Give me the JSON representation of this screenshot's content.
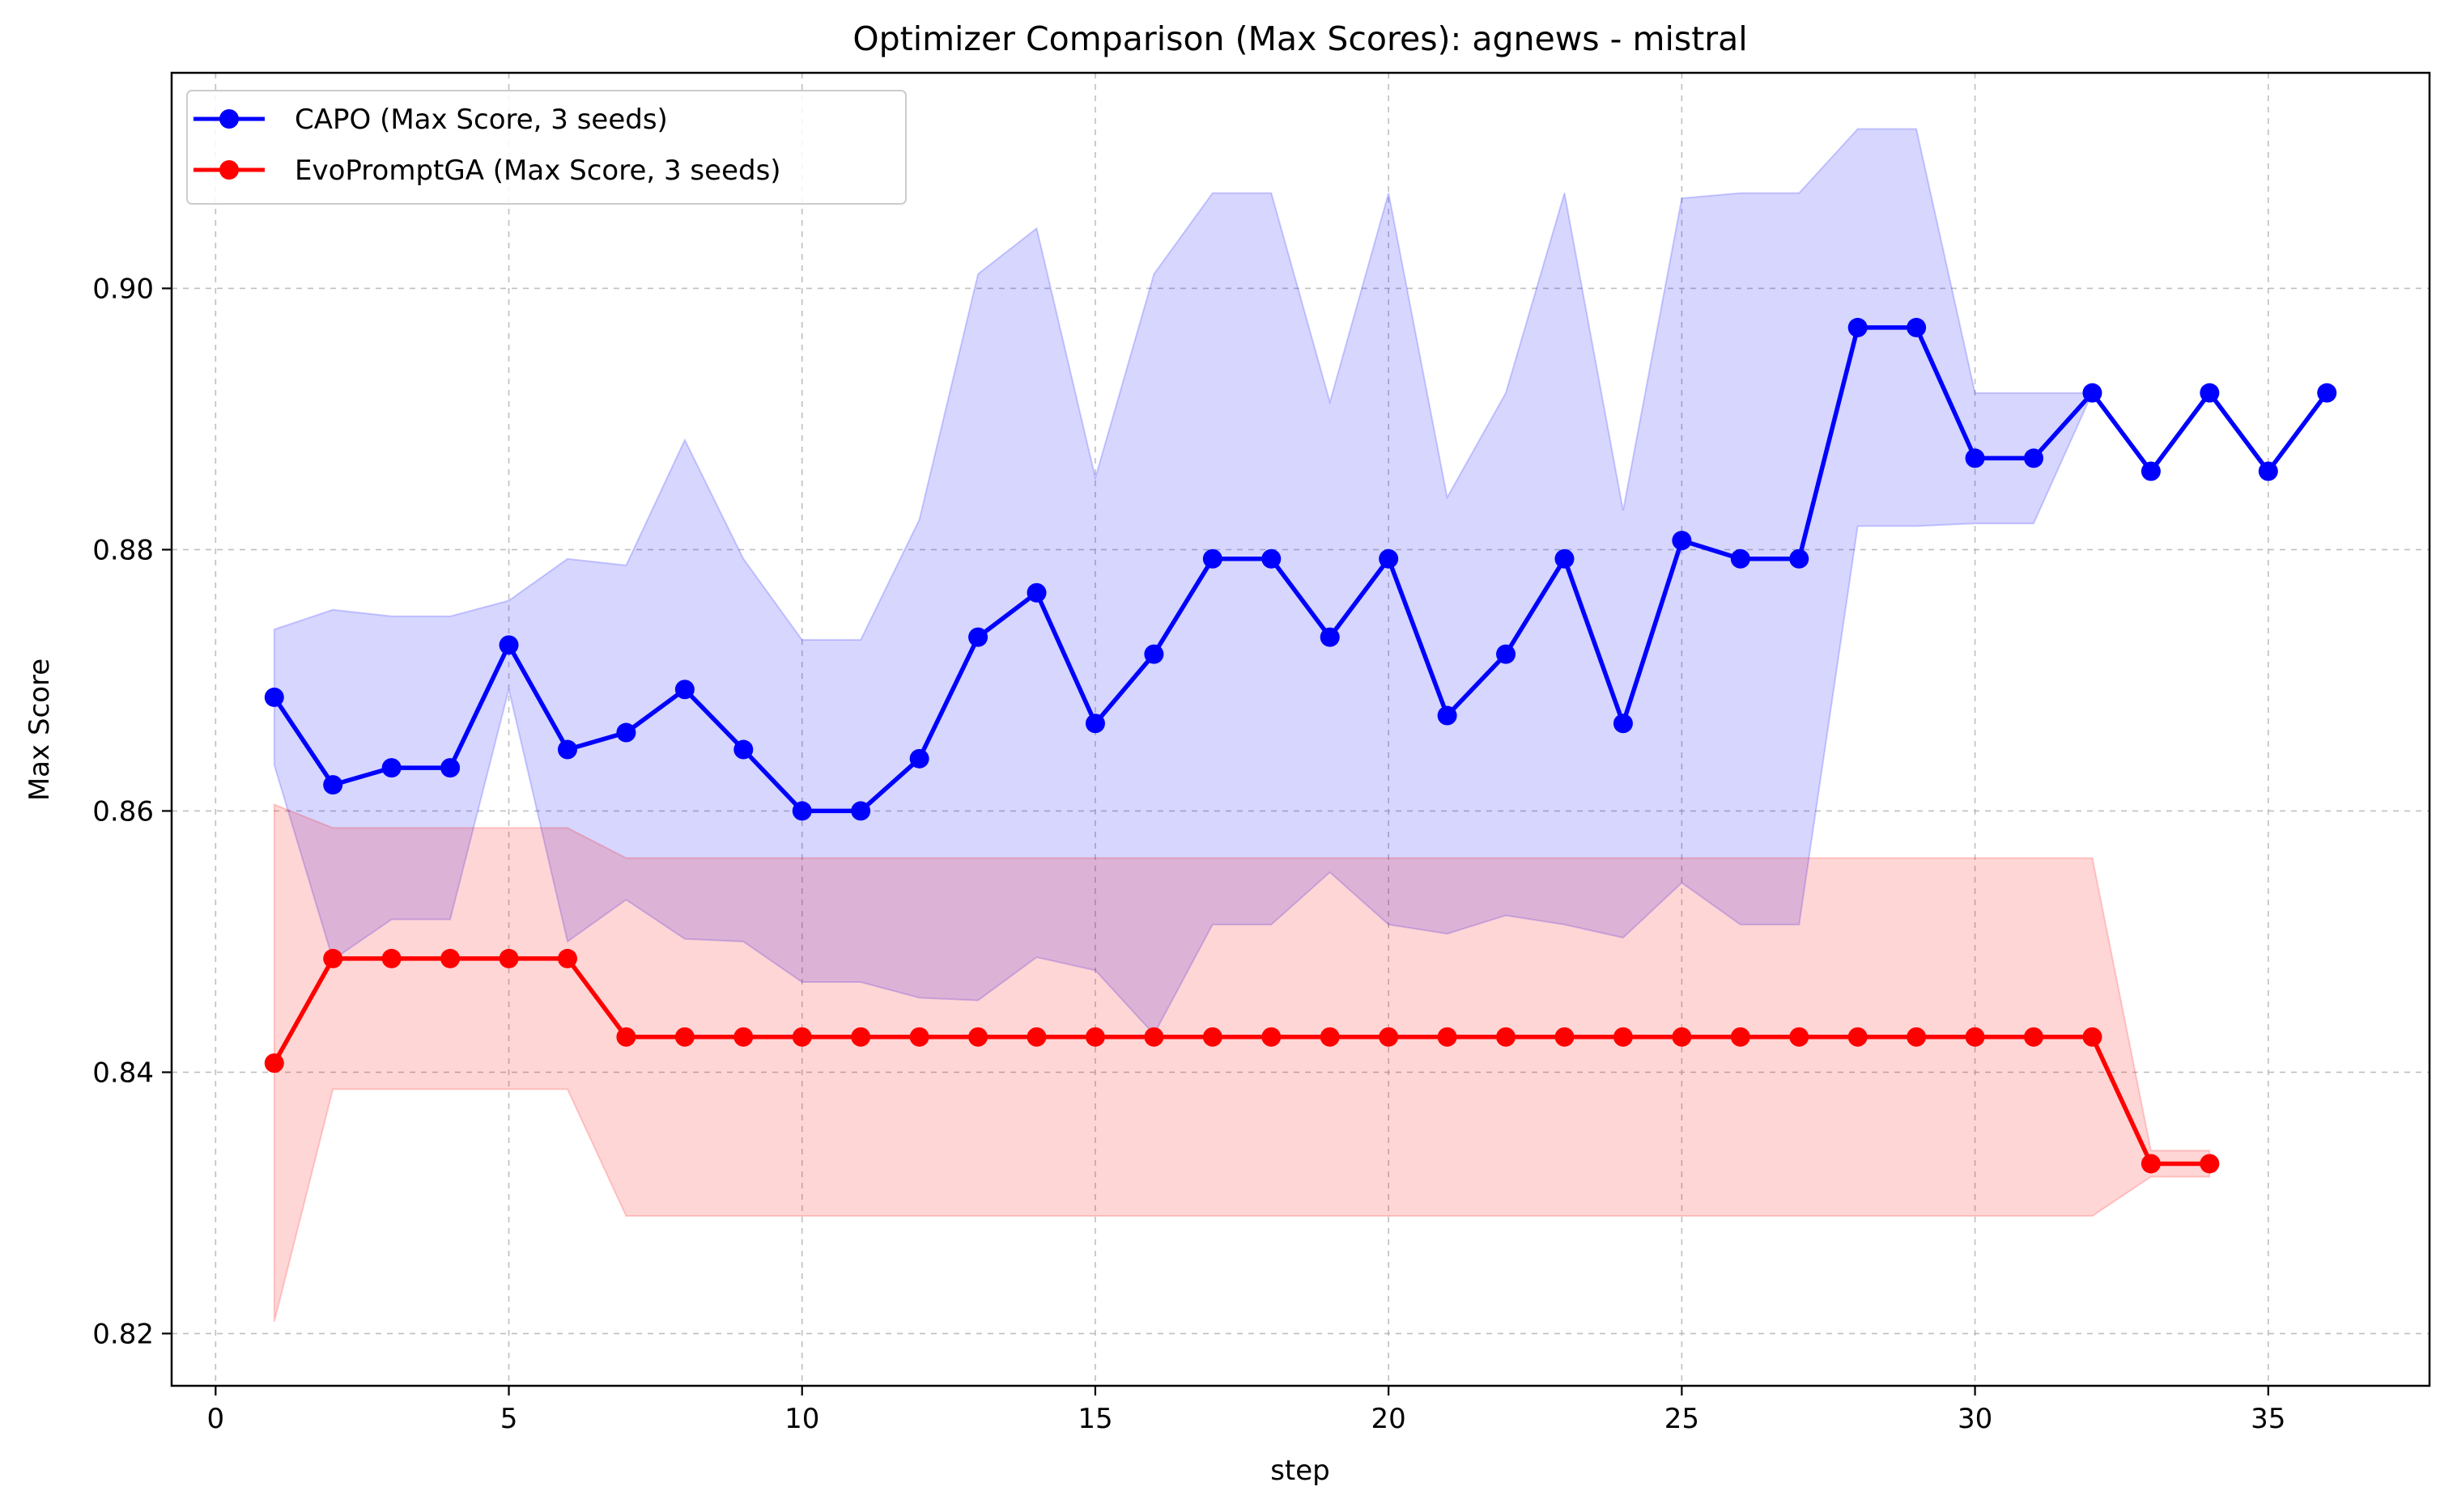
{
  "chart_data": {
    "type": "line",
    "title": "Optimizer Comparison (Max Scores): agnews - mistral",
    "xlabel": "step",
    "ylabel": "Max Score",
    "xlim": [
      -0.75,
      37.75
    ],
    "ylim": [
      0.816,
      0.9165
    ],
    "x_ticks": [
      0,
      5,
      10,
      15,
      20,
      25,
      30,
      35
    ],
    "y_ticks": [
      0.82,
      0.84,
      0.86,
      0.88,
      0.9
    ],
    "y_tick_labels": [
      "0.82",
      "0.84",
      "0.86",
      "0.88",
      "0.90"
    ],
    "grid": true,
    "legend_position": "upper-left",
    "series": [
      {
        "name": "CAPO (Max Score, 3 seeds)",
        "color": "#0000ff",
        "band_color": "#0000ff",
        "x": [
          1,
          2,
          3,
          4,
          5,
          6,
          7,
          8,
          9,
          10,
          11,
          12,
          13,
          14,
          15,
          16,
          17,
          18,
          19,
          20,
          21,
          22,
          23,
          24,
          25,
          26,
          27,
          28,
          29,
          30,
          31,
          32,
          33,
          34,
          35,
          36
        ],
        "values": [
          0.8687,
          0.862,
          0.8633,
          0.8633,
          0.8727,
          0.8647,
          0.866,
          0.8693,
          0.8647,
          0.86,
          0.86,
          0.864,
          0.8733,
          0.8767,
          0.8667,
          0.872,
          0.8793,
          0.8793,
          0.8733,
          0.8793,
          0.8673,
          0.872,
          0.8793,
          0.8667,
          0.8807,
          0.8793,
          0.8793,
          0.897,
          0.897,
          0.887,
          0.887,
          0.892,
          0.886,
          0.892,
          0.886,
          0.892
        ],
        "upper": [
          0.8739,
          0.8754,
          0.8749,
          0.8749,
          0.8761,
          0.8793,
          0.8788,
          0.8884,
          0.8793,
          0.8731,
          0.8731,
          0.8823,
          0.9011,
          0.9046,
          0.8855,
          0.9011,
          0.9073,
          0.9073,
          0.8913,
          0.9073,
          0.884,
          0.892,
          0.9073,
          0.883,
          0.9069,
          0.9073,
          0.9073,
          0.9122,
          0.9122,
          0.892,
          0.892,
          0.892,
          0.886,
          0.892,
          0.886,
          0.892
        ],
        "lower": [
          0.8635,
          0.8486,
          0.8517,
          0.8517,
          0.8693,
          0.85,
          0.8532,
          0.8502,
          0.85,
          0.8469,
          0.8469,
          0.8457,
          0.8455,
          0.8488,
          0.8478,
          0.8429,
          0.8513,
          0.8513,
          0.8553,
          0.8513,
          0.8506,
          0.852,
          0.8513,
          0.8503,
          0.8545,
          0.8513,
          0.8513,
          0.8818,
          0.8818,
          0.882,
          0.882,
          0.892,
          0.886,
          0.892,
          0.886,
          0.892
        ]
      },
      {
        "name": "EvoPromptGA (Max Score, 3 seeds)",
        "color": "#ff0000",
        "band_color": "#ff0000",
        "x": [
          1,
          2,
          3,
          4,
          5,
          6,
          7,
          8,
          9,
          10,
          11,
          12,
          13,
          14,
          15,
          16,
          17,
          18,
          19,
          20,
          21,
          22,
          23,
          24,
          25,
          26,
          27,
          28,
          29,
          30,
          31,
          32,
          33,
          34
        ],
        "values": [
          0.8407,
          0.8487,
          0.8487,
          0.8487,
          0.8487,
          0.8487,
          0.8427,
          0.8427,
          0.8427,
          0.8427,
          0.8427,
          0.8427,
          0.8427,
          0.8427,
          0.8427,
          0.8427,
          0.8427,
          0.8427,
          0.8427,
          0.8427,
          0.8427,
          0.8427,
          0.8427,
          0.8427,
          0.8427,
          0.8427,
          0.8427,
          0.8427,
          0.8427,
          0.8427,
          0.8427,
          0.8427,
          0.833,
          0.833
        ],
        "upper": [
          0.8605,
          0.8587,
          0.8587,
          0.8587,
          0.8587,
          0.8587,
          0.8564,
          0.8564,
          0.8564,
          0.8564,
          0.8564,
          0.8564,
          0.8564,
          0.8564,
          0.8564,
          0.8564,
          0.8564,
          0.8564,
          0.8564,
          0.8564,
          0.8564,
          0.8564,
          0.8564,
          0.8564,
          0.8564,
          0.8564,
          0.8564,
          0.8564,
          0.8564,
          0.8564,
          0.8564,
          0.8564,
          0.834,
          0.834
        ],
        "lower": [
          0.8209,
          0.8387,
          0.8387,
          0.8387,
          0.8387,
          0.8387,
          0.829,
          0.829,
          0.829,
          0.829,
          0.829,
          0.829,
          0.829,
          0.829,
          0.829,
          0.829,
          0.829,
          0.829,
          0.829,
          0.829,
          0.829,
          0.829,
          0.829,
          0.829,
          0.829,
          0.829,
          0.829,
          0.829,
          0.829,
          0.829,
          0.829,
          0.829,
          0.832,
          0.832
        ]
      }
    ]
  }
}
